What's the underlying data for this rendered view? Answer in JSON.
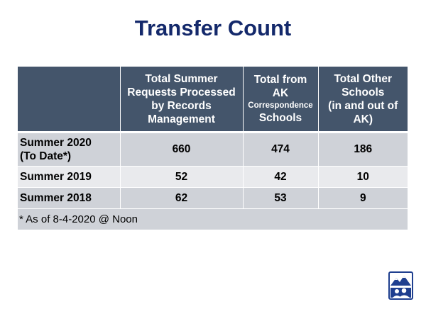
{
  "slide": {
    "title": "Transfer Count"
  },
  "table": {
    "headers": [
      {
        "lines": []
      },
      {
        "lines": [
          "Total Summer",
          "Requests Processed",
          "by Records",
          "Management"
        ]
      },
      {
        "lines": [
          "Total from",
          "AK",
          "Correspondence",
          "Schools"
        ]
      },
      {
        "lines": [
          "Total Other",
          "Schools",
          "(in and out of",
          "AK)"
        ]
      }
    ],
    "rows": [
      {
        "label_lines": [
          "Summer 2020",
          "(To Date*)"
        ],
        "records_management": "660",
        "ak_correspondence": "474",
        "other_schools": "186"
      },
      {
        "label_lines": [
          "Summer 2019"
        ],
        "records_management": "52",
        "ak_correspondence": "42",
        "other_schools": "10"
      },
      {
        "label_lines": [
          "Summer 2018"
        ],
        "records_management": "62",
        "ak_correspondence": "53",
        "other_schools": "9"
      }
    ],
    "footnote": "* As of 8-4-2020 @ Noon"
  },
  "colors": {
    "title": "#14296b",
    "header_bg": "#44556b",
    "row_dark": "#cfd2d8",
    "row_light": "#e9eaed"
  },
  "logo": {
    "icon": "school-district-logo-icon"
  }
}
